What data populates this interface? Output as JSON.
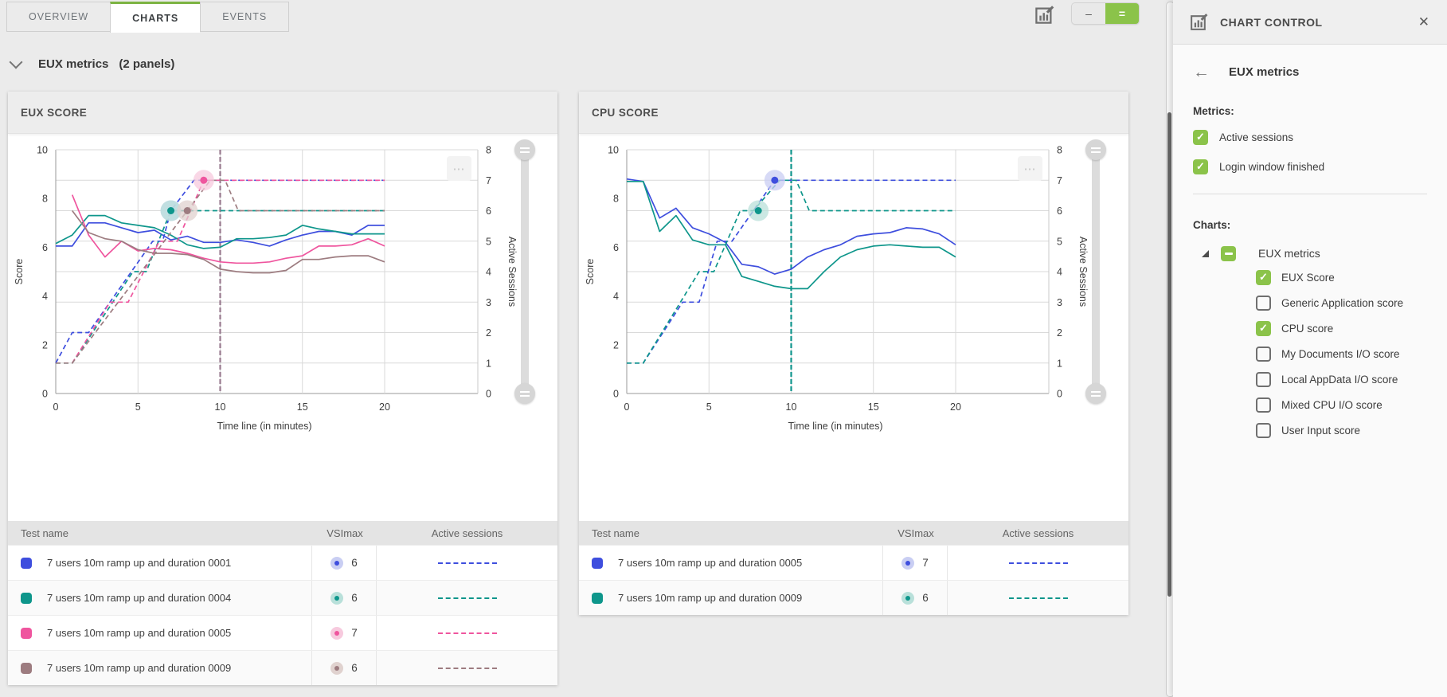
{
  "icons": {
    "more": "⋯",
    "close": "✕",
    "back": "←",
    "check": "✓"
  },
  "tabs": {
    "items": [
      {
        "label": "OVERVIEW",
        "active": false
      },
      {
        "label": "CHARTS",
        "active": true
      },
      {
        "label": "EVENTS",
        "active": false
      }
    ]
  },
  "toolbar": {
    "chart_control_toggle_icon": "chart-control-icon",
    "size_buttons": [
      {
        "glyph": "–",
        "active": false
      },
      {
        "glyph": "=",
        "active": true
      }
    ]
  },
  "section": {
    "title": "EUX metrics",
    "badge": "(2 panels)"
  },
  "colors": {
    "accent_green": "#8bc34a",
    "tab_active_green": "#7cb342",
    "blue": "#3e4ede",
    "teal": "#0e968b",
    "pink": "#ef559e",
    "brown": "#9d7c80"
  },
  "panels": [
    {
      "title": "EUX SCORE",
      "axes": {
        "x_label": "Time line (in minutes)",
        "y_left_label": "Score",
        "y_right_label": "Active Sessions",
        "x_ticks": [
          0,
          5,
          10,
          15,
          20
        ],
        "y_left_ticks": [
          0,
          2,
          4,
          6,
          8,
          10
        ],
        "y_right_ticks": [
          0,
          1,
          2,
          3,
          4,
          5,
          6,
          7,
          8
        ],
        "y_left_range": [
          0,
          10
        ],
        "y_right_range": [
          0,
          8
        ]
      },
      "event_line": {
        "x": 10,
        "color": "#997b90"
      },
      "table": {
        "headers": [
          "Test name",
          "VSImax",
          "Active sessions"
        ]
      },
      "series": [
        {
          "name": "7 users 10m ramp up and duration 0001",
          "vsimax": 6,
          "color": "#3e4ede",
          "halo": "#c9cef3",
          "scores": [
            6.05,
            6.05,
            7,
            7,
            6.8,
            6.6,
            6.7,
            6.3,
            6.45,
            6.2,
            6.2,
            6.3,
            6.2,
            6.05,
            6.3,
            6.5,
            6.65,
            6.65,
            6.5,
            6.9,
            6.9
          ],
          "sessions": [
            [
              0,
              1
            ],
            [
              1,
              2
            ],
            [
              2,
              2
            ],
            [
              5.9,
              5
            ],
            [
              6.5,
              5
            ],
            [
              7,
              6
            ],
            [
              8.4,
              7
            ],
            [
              20,
              7
            ]
          ],
          "marker": {
            "x": 7,
            "y": 6
          }
        },
        {
          "name": "7 users 10m ramp up and duration 0004",
          "vsimax": 6,
          "color": "#0e968b",
          "halo": "#b9e0da",
          "scores": [
            6.15,
            6.5,
            7.3,
            7.3,
            7,
            6.9,
            6.8,
            6.5,
            6.1,
            5.95,
            6,
            6.35,
            6.35,
            6.4,
            6.5,
            6.9,
            6.75,
            6.65,
            6.55,
            6.55,
            6.55
          ],
          "sessions": [
            [
              0,
              1
            ],
            [
              1,
              1
            ],
            [
              4.7,
              4
            ],
            [
              5.5,
              4
            ],
            [
              7,
              6
            ],
            [
              20,
              6
            ]
          ],
          "marker": {
            "x": 7,
            "y": 6
          }
        },
        {
          "name": "7 users 10m ramp up and duration 0005",
          "vsimax": 7,
          "color": "#ef559e",
          "halo": "#f7cade",
          "scores": [
            null,
            8.15,
            6.5,
            5.6,
            6.25,
            5.85,
            5.95,
            5.9,
            5.75,
            5.55,
            5.4,
            5.35,
            5.35,
            5.4,
            5.55,
            5.65,
            6.05,
            6.05,
            6.1,
            6.35,
            6.05
          ],
          "sessions": [
            [
              1,
              1
            ],
            [
              3.3,
              3
            ],
            [
              4.4,
              3
            ],
            [
              6.3,
              5
            ],
            [
              7.4,
              5
            ],
            [
              9,
              7
            ],
            [
              20,
              7
            ]
          ],
          "marker": {
            "x": 9,
            "y": 7
          }
        },
        {
          "name": "7 users 10m ramp up and duration 0009",
          "vsimax": 6,
          "color": "#9d7c80",
          "halo": "#e0d2cf",
          "scores": [
            null,
            7.5,
            6.6,
            6.35,
            6.25,
            5.9,
            5.75,
            5.75,
            5.7,
            5.5,
            5.1,
            5,
            4.95,
            4.95,
            5.05,
            5.5,
            5.5,
            5.6,
            5.65,
            5.65,
            5.4
          ],
          "sessions": [
            [
              0,
              1
            ],
            [
              1,
              1
            ],
            [
              8,
              6
            ],
            [
              9.4,
              7
            ],
            [
              10.3,
              7
            ],
            [
              11.1,
              6
            ],
            [
              20,
              6
            ]
          ],
          "marker": {
            "x": 8,
            "y": 6
          }
        }
      ]
    },
    {
      "title": "CPU SCORE",
      "axes": {
        "x_label": "Time line (in minutes)",
        "y_left_label": "Score",
        "y_right_label": "Active Sessions",
        "x_ticks": [
          0,
          5,
          10,
          15,
          20
        ],
        "y_left_ticks": [
          0,
          2,
          4,
          6,
          8,
          10
        ],
        "y_right_ticks": [
          0,
          1,
          2,
          3,
          4,
          5,
          6,
          7,
          8
        ],
        "y_left_range": [
          0,
          10
        ],
        "y_right_range": [
          0,
          8
        ]
      },
      "event_line": {
        "x": 10,
        "color": "#10958d"
      },
      "table": {
        "headers": [
          "Test name",
          "VSImax",
          "Active sessions"
        ]
      },
      "series": [
        {
          "name": "7 users 10m ramp up and duration 0005",
          "vsimax": 7,
          "color": "#3e4ede",
          "halo": "#c9cef3",
          "scores": [
            8.8,
            8.7,
            7.2,
            7.6,
            6.8,
            6.55,
            6.2,
            5.3,
            5.2,
            4.9,
            5.1,
            5.6,
            5.9,
            6.1,
            6.45,
            6.55,
            6.6,
            6.8,
            6.75,
            6.55,
            6.1
          ],
          "sessions": [
            [
              0,
              1
            ],
            [
              1,
              1
            ],
            [
              3.4,
              3
            ],
            [
              4.4,
              3
            ],
            [
              5.5,
              5
            ],
            [
              6.4,
              5
            ],
            [
              9,
              7
            ],
            [
              20,
              7
            ]
          ],
          "marker": {
            "x": 9,
            "y": 7
          }
        },
        {
          "name": "7 users 10m ramp up and duration 0009",
          "vsimax": 6,
          "color": "#0e968b",
          "halo": "#b9e0da",
          "scores": [
            8.7,
            8.7,
            6.65,
            7.3,
            6.3,
            6.1,
            6.1,
            4.8,
            4.6,
            4.4,
            4.3,
            4.3,
            5,
            5.6,
            5.9,
            6.05,
            6.1,
            6.05,
            6,
            6,
            5.6
          ],
          "sessions": [
            [
              0,
              1
            ],
            [
              1,
              1
            ],
            [
              4.4,
              4
            ],
            [
              5.3,
              4
            ],
            [
              6.9,
              6
            ],
            [
              7.7,
              6
            ],
            [
              9.3,
              7
            ],
            [
              10.3,
              7
            ],
            [
              11.1,
              6
            ],
            [
              20,
              6
            ]
          ],
          "marker": {
            "x": 8,
            "y": 6
          }
        }
      ]
    }
  ],
  "sidebar": {
    "header": {
      "title": "CHART CONTROL"
    },
    "back": {
      "label": "EUX metrics"
    },
    "metrics": {
      "label": "Metrics:",
      "items": [
        {
          "label": "Active sessions",
          "checked": true
        },
        {
          "label": "Login window finished",
          "checked": true
        }
      ]
    },
    "charts": {
      "label": "Charts:",
      "group": {
        "label": "EUX metrics",
        "state": "indeterminate"
      },
      "items": [
        {
          "label": "EUX Score",
          "checked": true
        },
        {
          "label": "Generic Application score",
          "checked": false
        },
        {
          "label": "CPU score",
          "checked": true
        },
        {
          "label": "My Documents I/O score",
          "checked": false
        },
        {
          "label": "Local AppData I/O score",
          "checked": false
        },
        {
          "label": "Mixed CPU I/O score",
          "checked": false
        },
        {
          "label": "User Input score",
          "checked": false
        }
      ]
    }
  }
}
